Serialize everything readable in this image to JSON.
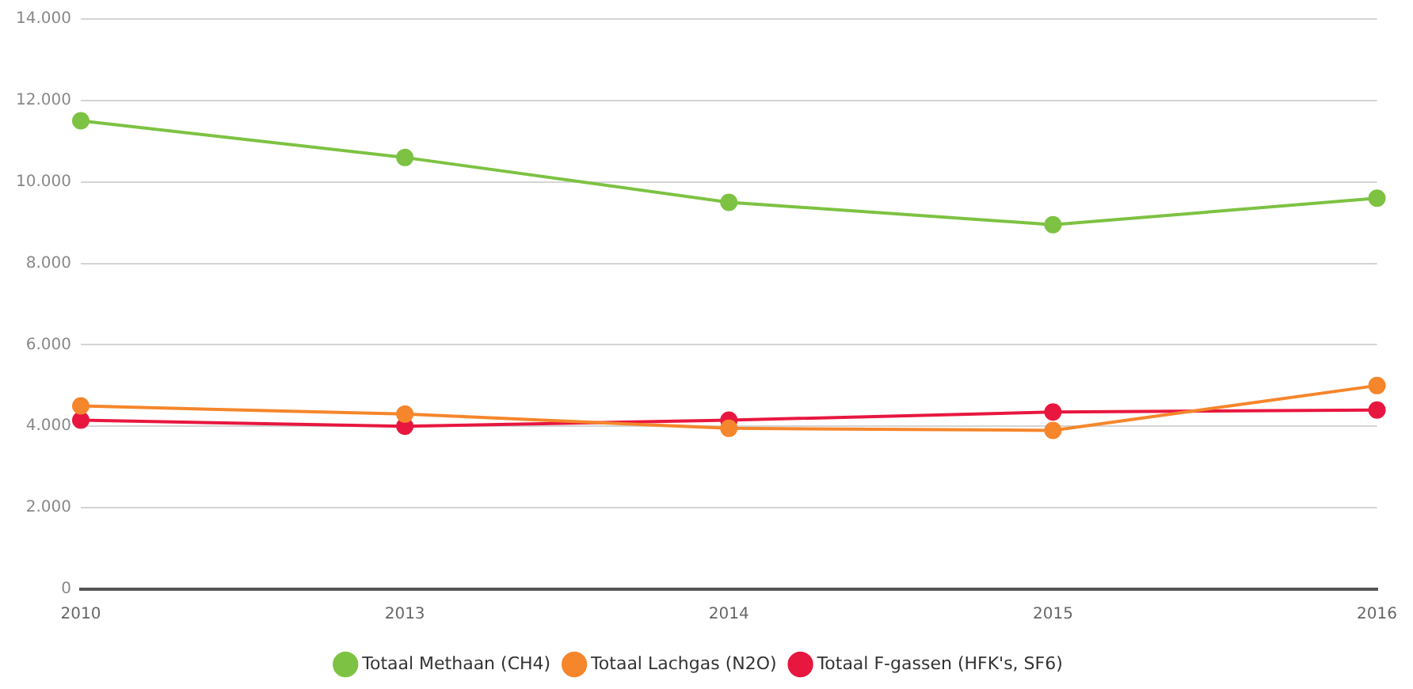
{
  "chart_data": {
    "type": "line",
    "categories": [
      "2010",
      "2013",
      "2014",
      "2015",
      "2016"
    ],
    "series": [
      {
        "name": "Totaal Methaan (CH4)",
        "color": "#7dc242",
        "values": [
          11500,
          10600,
          9500,
          8950,
          9600
        ]
      },
      {
        "name": "Totaal Lachgas (N2O)",
        "color": "#f5862b",
        "values": [
          4500,
          4300,
          3950,
          3900,
          5000
        ]
      },
      {
        "name": "Totaal F-gassen (HFK's, SF6)",
        "color": "#e8173f",
        "values": [
          4150,
          4000,
          4150,
          4350,
          4400
        ]
      }
    ],
    "ylim": [
      0,
      14000
    ],
    "yticks": [
      {
        "value": 0,
        "label": "0"
      },
      {
        "value": 2000,
        "label": "2.000"
      },
      {
        "value": 4000,
        "label": "4.000"
      },
      {
        "value": 6000,
        "label": "6.000"
      },
      {
        "value": 8000,
        "label": "8.000"
      },
      {
        "value": 10000,
        "label": "10.000"
      },
      {
        "value": 12000,
        "label": "12.000"
      },
      {
        "value": 14000,
        "label": "14.000"
      }
    ],
    "grid": "y",
    "legend": "bottom",
    "marker": "circle",
    "line_style": "solid"
  }
}
